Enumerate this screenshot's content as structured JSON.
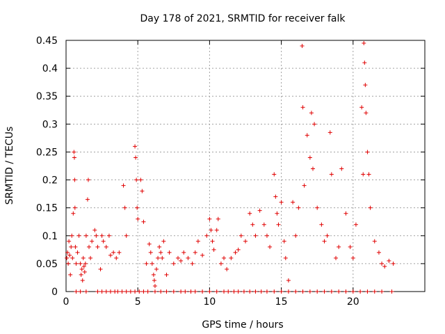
{
  "chart_data": {
    "type": "scatter",
    "title": "Day 178 of 2021, SRMTID for receiver falk",
    "xlabel": "GPS time / hours",
    "ylabel": "SRMTID / TECUs",
    "xlim": [
      0,
      25
    ],
    "ylim": [
      0,
      0.45
    ],
    "xticks": [
      0,
      5,
      10,
      15,
      20
    ],
    "xtick_labels": [
      "0",
      "5",
      "10",
      "15",
      "20"
    ],
    "yticks": [
      0,
      0.05,
      0.1,
      0.15,
      0.2,
      0.25,
      0.3,
      0.35,
      0.4,
      0.45
    ],
    "ytick_labels": [
      "0",
      "0.05",
      "0.1",
      "0.15",
      "0.2",
      "0.25",
      "0.3",
      "0.35",
      "0.4",
      "0.45"
    ],
    "grid": true,
    "marker": "+",
    "color": "#e00000",
    "series": [
      {
        "name": "SRMTID",
        "points": [
          [
            0.05,
            0.06
          ],
          [
            0.1,
            0.07
          ],
          [
            0.15,
            0.05
          ],
          [
            0.2,
            0.09
          ],
          [
            0.25,
            0.065
          ],
          [
            0.3,
            0.03
          ],
          [
            0.35,
            0.08
          ],
          [
            0.4,
            0.1
          ],
          [
            0.45,
            0.06
          ],
          [
            0.5,
            0.14
          ],
          [
            0.55,
            0.25
          ],
          [
            0.58,
            0.24
          ],
          [
            0.6,
            0.2
          ],
          [
            0.62,
            0.15
          ],
          [
            0.65,
            0.08
          ],
          [
            0.7,
            0.05
          ],
          [
            0.8,
            0.07
          ],
          [
            0.9,
            0.1
          ],
          [
            1.0,
            0.05
          ],
          [
            1.05,
            0.03
          ],
          [
            1.1,
            0.04
          ],
          [
            1.15,
            0.02
          ],
          [
            1.2,
            0.06
          ],
          [
            1.25,
            0.045
          ],
          [
            1.3,
            0.035
          ],
          [
            1.35,
            0.05
          ],
          [
            1.4,
            0.1
          ],
          [
            1.5,
            0.165
          ],
          [
            1.55,
            0.2
          ],
          [
            1.6,
            0.08
          ],
          [
            1.7,
            0.06
          ],
          [
            1.8,
            0.09
          ],
          [
            2.0,
            0.11
          ],
          [
            2.1,
            0.1
          ],
          [
            2.2,
            0.08
          ],
          [
            2.4,
            0.04
          ],
          [
            2.5,
            0.1
          ],
          [
            2.6,
            0.09
          ],
          [
            2.8,
            0.08
          ],
          [
            3.0,
            0.1
          ],
          [
            3.1,
            0.065
          ],
          [
            3.3,
            0.07
          ],
          [
            3.5,
            0.06
          ],
          [
            3.7,
            0.07
          ],
          [
            4.0,
            0.19
          ],
          [
            4.1,
            0.15
          ],
          [
            4.2,
            0.1
          ],
          [
            4.8,
            0.26
          ],
          [
            4.85,
            0.24
          ],
          [
            4.9,
            0.2
          ],
          [
            4.95,
            0.15
          ],
          [
            5.0,
            0.13
          ],
          [
            5.2,
            0.2
          ],
          [
            5.3,
            0.18
          ],
          [
            5.4,
            0.125
          ],
          [
            5.6,
            0.05
          ],
          [
            5.8,
            0.085
          ],
          [
            5.9,
            0.07
          ],
          [
            6.0,
            0.05
          ],
          [
            6.1,
            0.03
          ],
          [
            6.15,
            0.02
          ],
          [
            6.2,
            0.01
          ],
          [
            6.3,
            0.04
          ],
          [
            6.4,
            0.06
          ],
          [
            6.5,
            0.08
          ],
          [
            6.6,
            0.07
          ],
          [
            6.7,
            0.06
          ],
          [
            6.8,
            0.09
          ],
          [
            7.0,
            0.03
          ],
          [
            7.2,
            0.07
          ],
          [
            7.5,
            0.05
          ],
          [
            7.8,
            0.06
          ],
          [
            8.0,
            0.055
          ],
          [
            8.2,
            0.07
          ],
          [
            8.5,
            0.06
          ],
          [
            8.8,
            0.05
          ],
          [
            9.0,
            0.07
          ],
          [
            9.2,
            0.09
          ],
          [
            9.5,
            0.065
          ],
          [
            9.8,
            0.1
          ],
          [
            10.0,
            0.13
          ],
          [
            10.1,
            0.11
          ],
          [
            10.2,
            0.09
          ],
          [
            10.3,
            0.075
          ],
          [
            10.5,
            0.11
          ],
          [
            10.6,
            0.13
          ],
          [
            10.8,
            0.05
          ],
          [
            11.0,
            0.06
          ],
          [
            11.2,
            0.04
          ],
          [
            11.5,
            0.06
          ],
          [
            11.8,
            0.07
          ],
          [
            12.0,
            0.075
          ],
          [
            12.2,
            0.1
          ],
          [
            12.5,
            0.09
          ],
          [
            12.8,
            0.14
          ],
          [
            13.0,
            0.12
          ],
          [
            13.2,
            0.1
          ],
          [
            13.5,
            0.145
          ],
          [
            13.8,
            0.12
          ],
          [
            14.0,
            0.1
          ],
          [
            14.2,
            0.08
          ],
          [
            14.5,
            0.21
          ],
          [
            14.6,
            0.17
          ],
          [
            14.7,
            0.14
          ],
          [
            14.8,
            0.12
          ],
          [
            15.0,
            0.16
          ],
          [
            15.2,
            0.09
          ],
          [
            15.3,
            0.06
          ],
          [
            15.5,
            0.02
          ],
          [
            15.8,
            0.16
          ],
          [
            16.0,
            0.1
          ],
          [
            16.2,
            0.15
          ],
          [
            16.45,
            0.44
          ],
          [
            16.5,
            0.33
          ],
          [
            16.6,
            0.19
          ],
          [
            16.8,
            0.28
          ],
          [
            17.0,
            0.24
          ],
          [
            17.1,
            0.32
          ],
          [
            17.2,
            0.22
          ],
          [
            17.3,
            0.3
          ],
          [
            17.5,
            0.15
          ],
          [
            17.8,
            0.12
          ],
          [
            18.0,
            0.09
          ],
          [
            18.2,
            0.1
          ],
          [
            18.4,
            0.285
          ],
          [
            18.5,
            0.21
          ],
          [
            18.8,
            0.06
          ],
          [
            19.0,
            0.08
          ],
          [
            19.2,
            0.22
          ],
          [
            19.5,
            0.14
          ],
          [
            19.8,
            0.08
          ],
          [
            20.0,
            0.06
          ],
          [
            20.2,
            0.12
          ],
          [
            20.6,
            0.33
          ],
          [
            20.7,
            0.21
          ],
          [
            20.75,
            0.445
          ],
          [
            20.8,
            0.41
          ],
          [
            20.85,
            0.37
          ],
          [
            20.9,
            0.32
          ],
          [
            21.0,
            0.25
          ],
          [
            21.1,
            0.21
          ],
          [
            21.2,
            0.15
          ],
          [
            21.5,
            0.09
          ],
          [
            21.8,
            0.07
          ],
          [
            22.0,
            0.05
          ],
          [
            22.2,
            0.045
          ],
          [
            22.5,
            0.055
          ],
          [
            22.8,
            0.05
          ],
          [
            0.7,
            0
          ],
          [
            1.0,
            0
          ],
          [
            1.4,
            0
          ],
          [
            2.2,
            0
          ],
          [
            2.5,
            0
          ],
          [
            2.8,
            0
          ],
          [
            3.1,
            0
          ],
          [
            3.4,
            0
          ],
          [
            3.6,
            0
          ],
          [
            3.9,
            0
          ],
          [
            4.2,
            0
          ],
          [
            4.5,
            0
          ],
          [
            4.8,
            0
          ],
          [
            5.1,
            0
          ],
          [
            5.4,
            0
          ],
          [
            5.7,
            0
          ],
          [
            6.2,
            0
          ],
          [
            6.6,
            0
          ],
          [
            7.0,
            0
          ],
          [
            7.5,
            0
          ],
          [
            8.0,
            0
          ],
          [
            8.3,
            0
          ],
          [
            8.7,
            0
          ],
          [
            9.0,
            0
          ],
          [
            9.5,
            0
          ],
          [
            10.0,
            0
          ],
          [
            10.5,
            0
          ],
          [
            11.0,
            0
          ],
          [
            11.3,
            0
          ],
          [
            11.7,
            0
          ],
          [
            12.0,
            0
          ],
          [
            12.4,
            0
          ],
          [
            12.8,
            0
          ],
          [
            13.2,
            0
          ],
          [
            13.6,
            0
          ],
          [
            14.0,
            0
          ],
          [
            14.5,
            0
          ],
          [
            15.0,
            0
          ],
          [
            15.5,
            0
          ],
          [
            16.0,
            0
          ],
          [
            16.5,
            0
          ],
          [
            17.0,
            0
          ],
          [
            17.5,
            0
          ],
          [
            18.0,
            0
          ],
          [
            18.5,
            0
          ],
          [
            19.0,
            0
          ],
          [
            19.5,
            0
          ],
          [
            20.0,
            0
          ],
          [
            20.5,
            0
          ],
          [
            21.0,
            0
          ],
          [
            21.5,
            0
          ],
          [
            22.0,
            0
          ],
          [
            22.7,
            0
          ]
        ]
      }
    ]
  }
}
